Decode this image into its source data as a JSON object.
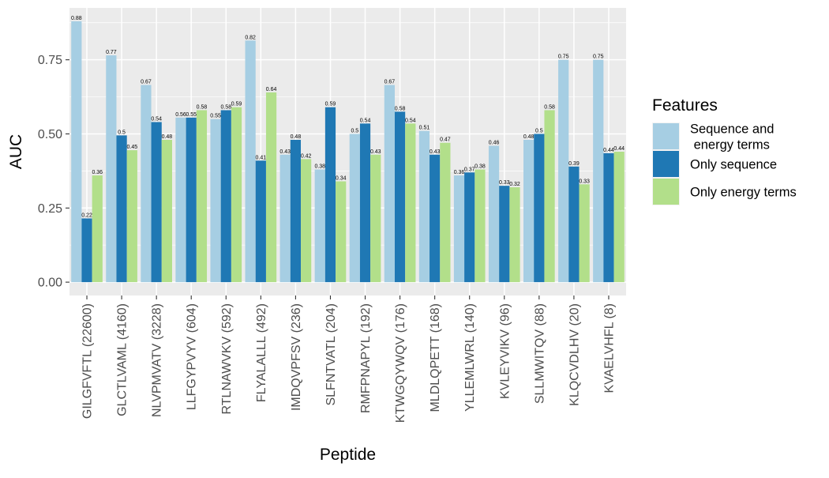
{
  "chart_data": {
    "type": "bar",
    "xlabel": "Peptide",
    "ylabel": "AUC",
    "ylim": [
      -0.045,
      0.925
    ],
    "yticks": [
      0.0,
      0.25,
      0.5,
      0.75
    ],
    "ytick_labels": [
      "0.00",
      "0.25",
      "0.50",
      "0.75"
    ],
    "grid": true,
    "legend_position": "right",
    "legend_title": "Features",
    "categories": [
      "GILGFVFTL (22600)",
      "GLCTLVAML (4160)",
      "NLVPMVATV (3228)",
      "LLFGYPVYV (604)",
      "RTLNAWVKV (592)",
      "FLYALALLL (492)",
      "IMDQVPFSV (236)",
      "SLFNTVATL (204)",
      "RMFPNAPYL (192)",
      "KTWGQYWQV (176)",
      "MLDLQPETT (168)",
      "YLLEMLWRL (140)",
      "KVLEYVIKV (96)",
      "SLLMWITQV (88)",
      "KLQCVDLHV (20)",
      "KVAELVHFL (8)"
    ],
    "series": [
      {
        "name": "Sequence and\n energy terms",
        "color": "#a6cee3",
        "values": [
          0.88,
          0.765,
          0.665,
          0.555,
          0.55,
          0.815,
          0.43,
          0.38,
          0.5,
          0.665,
          0.51,
          0.36,
          0.46,
          0.48,
          0.75,
          0.75
        ],
        "labels": [
          "0.88",
          "0.77",
          "0.67",
          "0.56",
          "0.55",
          "0.82",
          "0.43",
          "0.38",
          "0.5",
          "0.67",
          "0.51",
          "0.36",
          "0.46",
          "0.48",
          "0.75",
          "0.75"
        ]
      },
      {
        "name": "Only sequence",
        "color": "#1f78b4",
        "values": [
          0.215,
          0.495,
          0.54,
          0.555,
          0.58,
          0.41,
          0.48,
          0.59,
          0.535,
          0.575,
          0.43,
          0.37,
          0.325,
          0.5,
          0.39,
          0.435
        ],
        "labels": [
          "0.22",
          "0.5",
          "0.54",
          "0.55",
          "0.58",
          "0.41",
          "0.48",
          "0.59",
          "0.54",
          "0.58",
          "0.43",
          "0.37",
          "0.33",
          "0.5",
          "0.39",
          "0.44"
        ]
      },
      {
        "name": "Only energy terms",
        "color": "#b2df8a",
        "values": [
          0.36,
          0.445,
          0.48,
          0.58,
          0.59,
          0.64,
          0.415,
          0.34,
          0.43,
          0.535,
          0.47,
          0.38,
          0.32,
          0.58,
          0.33,
          0.44
        ],
        "labels": [
          "0.36",
          "0.45",
          "0.48",
          "0.58",
          "0.59",
          "0.64",
          "0.42",
          "0.34",
          "0.43",
          "0.54",
          "0.47",
          "0.38",
          "0.32",
          "0.58",
          "0.33",
          "0.44"
        ]
      }
    ]
  }
}
